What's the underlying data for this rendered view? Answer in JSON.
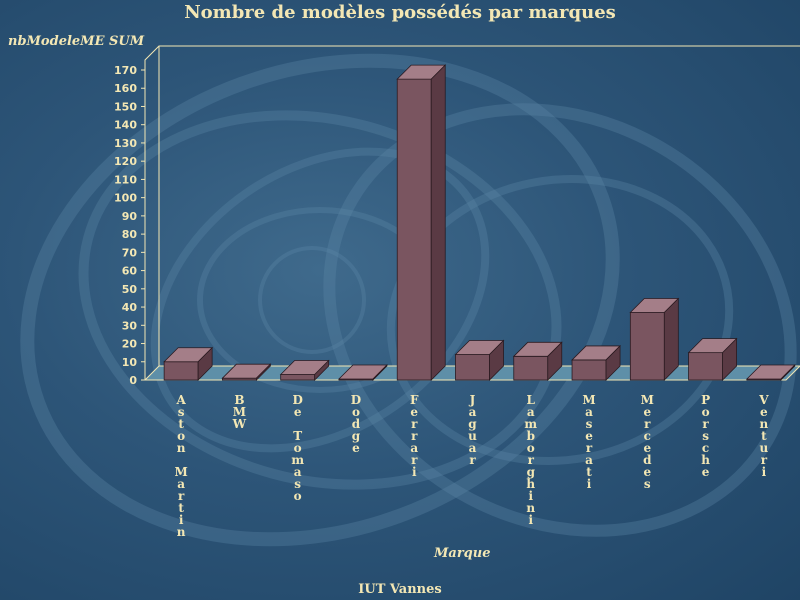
{
  "chart_data": {
    "type": "bar",
    "title": "Nombre de modèles possédés par marques",
    "ylabel": "nbModeleME SUM",
    "xlabel": "Marque",
    "categories": [
      "Aston Martin",
      "BMW",
      "De Tomaso",
      "Dodge",
      "Ferrari",
      "Jaguar",
      "Lamborghini",
      "Maserati",
      "Mercedes",
      "Porsche",
      "Venturi"
    ],
    "category_lines": [
      [
        "A",
        "s",
        "t",
        "o",
        "n",
        "",
        "M",
        "a",
        "r",
        "t",
        "i",
        "n"
      ],
      [
        "B",
        "M",
        "W"
      ],
      [
        "D",
        "e",
        "",
        "T",
        "o",
        "m",
        "a",
        "s",
        "o"
      ],
      [
        "D",
        "o",
        "d",
        "g",
        "e"
      ],
      [
        "F",
        "e",
        "r",
        "r",
        "a",
        "r",
        "i"
      ],
      [
        "J",
        "a",
        "g",
        "u",
        "a",
        "r"
      ],
      [
        "L",
        "a",
        "m",
        "b",
        "o",
        "r",
        "g",
        "h",
        "i",
        "n",
        "i"
      ],
      [
        "M",
        "a",
        "s",
        "e",
        "r",
        "a",
        "t",
        "i"
      ],
      [
        "M",
        "e",
        "r",
        "c",
        "e",
        "d",
        "e",
        "s"
      ],
      [
        "P",
        "o",
        "r",
        "s",
        "c",
        "h",
        "e"
      ],
      [
        "V",
        "e",
        "n",
        "t",
        "u",
        "r",
        "i"
      ]
    ],
    "values": [
      10,
      1,
      3,
      0,
      165,
      14,
      13,
      11,
      37,
      15,
      0
    ],
    "ylim": [
      0,
      170
    ],
    "yticks": [
      0,
      10,
      20,
      30,
      40,
      50,
      60,
      70,
      80,
      90,
      100,
      110,
      120,
      130,
      140,
      150,
      160,
      170
    ],
    "style": "3d",
    "colors": {
      "bar_front": "#7a5560",
      "bar_top": "#a47e88",
      "bar_side": "#5a3a44",
      "floor": "#5e8fa8",
      "axis": "#f3e7b4"
    }
  },
  "footer": "IUT Vannes"
}
